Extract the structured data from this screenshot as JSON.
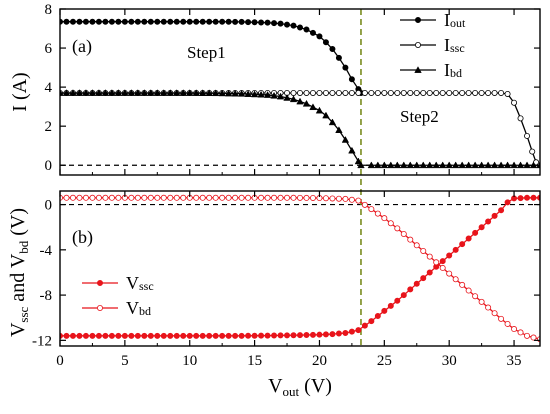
{
  "chart_data": [
    {
      "type": "line",
      "panel_label": "(a)",
      "ylabel": "I (A)",
      "ylim": [
        -0.5,
        8
      ],
      "xlim": [
        0,
        37
      ],
      "yticks": [
        0,
        2,
        4,
        6,
        8
      ],
      "annotations": [
        "Step1",
        "Step2"
      ],
      "legend_placement": "top-right",
      "series": [
        {
          "name_main": "I",
          "name_sub": "out",
          "marker": "filled-circle",
          "color": "#000000",
          "points": [
            [
              0,
              7.35
            ],
            [
              2,
              7.35
            ],
            [
              4,
              7.35
            ],
            [
              6,
              7.35
            ],
            [
              8,
              7.35
            ],
            [
              10,
              7.35
            ],
            [
              12,
              7.35
            ],
            [
              14,
              7.34
            ],
            [
              16,
              7.3
            ],
            [
              17,
              7.25
            ],
            [
              18,
              7.15
            ],
            [
              19,
              6.95
            ],
            [
              20,
              6.6
            ],
            [
              20.5,
              6.3
            ],
            [
              21,
              5.95
            ],
            [
              21.5,
              5.5
            ],
            [
              22,
              5.0
            ],
            [
              22.5,
              4.4
            ],
            [
              23,
              3.9
            ],
            [
              23.2,
              3.7
            ]
          ]
        },
        {
          "name_main": "I",
          "name_sub": "ssc",
          "marker": "open-circle",
          "color": "#000000",
          "points": [
            [
              0,
              3.7
            ],
            [
              2,
              3.7
            ],
            [
              4,
              3.7
            ],
            [
              6,
              3.7
            ],
            [
              8,
              3.7
            ],
            [
              10,
              3.7
            ],
            [
              12,
              3.7
            ],
            [
              14,
              3.7
            ],
            [
              16,
              3.7
            ],
            [
              18,
              3.7
            ],
            [
              20,
              3.7
            ],
            [
              22,
              3.7
            ],
            [
              24,
              3.7
            ],
            [
              26,
              3.7
            ],
            [
              28,
              3.7
            ],
            [
              30,
              3.7
            ],
            [
              32,
              3.7
            ],
            [
              34,
              3.7
            ],
            [
              34.5,
              3.65
            ],
            [
              35,
              3.2
            ],
            [
              35.5,
              2.4
            ],
            [
              36,
              1.5
            ],
            [
              36.4,
              0.7
            ],
            [
              36.7,
              0.15
            ],
            [
              37,
              0
            ]
          ]
        },
        {
          "name_main": "I",
          "name_sub": "bd",
          "marker": "filled-triangle",
          "color": "#000000",
          "points": [
            [
              0,
              3.7
            ],
            [
              2,
              3.7
            ],
            [
              4,
              3.7
            ],
            [
              6,
              3.7
            ],
            [
              8,
              3.7
            ],
            [
              10,
              3.7
            ],
            [
              12,
              3.69
            ],
            [
              14,
              3.66
            ],
            [
              16,
              3.6
            ],
            [
              17,
              3.52
            ],
            [
              18,
              3.38
            ],
            [
              19,
              3.15
            ],
            [
              20,
              2.8
            ],
            [
              20.5,
              2.55
            ],
            [
              21,
              2.2
            ],
            [
              21.5,
              1.8
            ],
            [
              22,
              1.3
            ],
            [
              22.5,
              0.75
            ],
            [
              23,
              0.2
            ],
            [
              23.2,
              0.0
            ],
            [
              24,
              0
            ],
            [
              26,
              0
            ],
            [
              28,
              0
            ],
            [
              30,
              0
            ],
            [
              32,
              0
            ],
            [
              34,
              0
            ],
            [
              35,
              0
            ],
            [
              36,
              0
            ],
            [
              37,
              0
            ]
          ]
        }
      ]
    },
    {
      "type": "line",
      "panel_label": "(b)",
      "ylabel_parts": [
        {
          "t": "V",
          "sub": false
        },
        {
          "t": "ssc",
          "sub": true
        },
        {
          "t": " and V",
          "sub": false
        },
        {
          "t": "bd",
          "sub": true
        },
        {
          "t": " (V)",
          "sub": false
        }
      ],
      "ylim": [
        -12.5,
        1.2
      ],
      "xlim": [
        0,
        37
      ],
      "yticks": [
        0,
        -4,
        -8,
        -12
      ],
      "ytick_labels": [
        "0",
        "-4",
        "-8",
        "-12"
      ],
      "xticks": [
        0,
        5,
        10,
        15,
        20,
        25,
        30,
        35
      ],
      "xlabel_main": "V",
      "xlabel_sub": "out",
      "xlabel_unit": " (V)",
      "legend_placement": "bottom-left",
      "series": [
        {
          "name_main": "V",
          "name_sub": "ssc",
          "marker": "filled-circle",
          "color": "#e8141b",
          "points": [
            [
              0,
              -11.6
            ],
            [
              2,
              -11.6
            ],
            [
              4,
              -11.6
            ],
            [
              6,
              -11.6
            ],
            [
              8,
              -11.6
            ],
            [
              10,
              -11.6
            ],
            [
              12,
              -11.6
            ],
            [
              14,
              -11.6
            ],
            [
              16,
              -11.58
            ],
            [
              18,
              -11.55
            ],
            [
              20,
              -11.5
            ],
            [
              21,
              -11.45
            ],
            [
              22,
              -11.35
            ],
            [
              23,
              -11.1
            ],
            [
              24,
              -10.3
            ],
            [
              25,
              -9.4
            ],
            [
              26,
              -8.5
            ],
            [
              27,
              -7.5
            ],
            [
              28,
              -6.5
            ],
            [
              29,
              -5.5
            ],
            [
              30,
              -4.5
            ],
            [
              31,
              -3.5
            ],
            [
              32,
              -2.5
            ],
            [
              33,
              -1.5
            ],
            [
              34,
              -0.5
            ],
            [
              34.5,
              0.2
            ],
            [
              35,
              0.55
            ],
            [
              36,
              0.6
            ],
            [
              37,
              0.6
            ]
          ]
        },
        {
          "name_main": "V",
          "name_sub": "bd",
          "marker": "open-circle",
          "color": "#e8141b",
          "points": [
            [
              0,
              0.6
            ],
            [
              2,
              0.6
            ],
            [
              4,
              0.6
            ],
            [
              6,
              0.6
            ],
            [
              8,
              0.6
            ],
            [
              10,
              0.6
            ],
            [
              12,
              0.6
            ],
            [
              14,
              0.6
            ],
            [
              16,
              0.6
            ],
            [
              18,
              0.6
            ],
            [
              20,
              0.58
            ],
            [
              22,
              0.5
            ],
            [
              23,
              0.35
            ],
            [
              24,
              -0.4
            ],
            [
              25,
              -1.2
            ],
            [
              26,
              -2.1
            ],
            [
              27,
              -3.1
            ],
            [
              28,
              -4.1
            ],
            [
              29,
              -5.1
            ],
            [
              30,
              -6.1
            ],
            [
              31,
              -7.1
            ],
            [
              32,
              -8.1
            ],
            [
              33,
              -9.1
            ],
            [
              34,
              -10.1
            ],
            [
              35,
              -11.0
            ],
            [
              36,
              -11.6
            ],
            [
              37,
              -11.9
            ]
          ]
        }
      ]
    }
  ],
  "colors": {
    "vertical_marker": "#7a8c1e",
    "zero_line": "#000000",
    "axis": "#000000"
  },
  "vertical_marker_x": 23.2
}
